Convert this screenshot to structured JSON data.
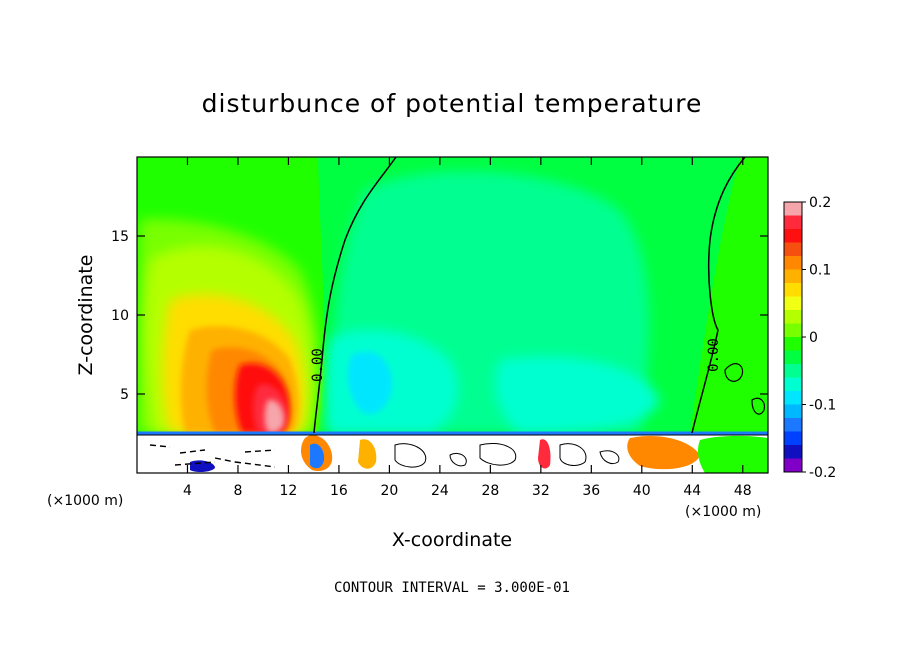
{
  "chart_data": {
    "type": "heatmap",
    "title": "disturbunce of potential temperature",
    "xlabel": "X-coordinate",
    "ylabel": "Z-coordinate",
    "x_unit": "(×1000 m)",
    "x_unit_right": "(×1000 m)",
    "xlim": [
      0,
      50
    ],
    "ylim": [
      0,
      20
    ],
    "xticks": [
      "4",
      "8",
      "12",
      "16",
      "20",
      "24",
      "28",
      "32",
      "36",
      "40",
      "44",
      "48"
    ],
    "yticks": [
      "5",
      "10",
      "15"
    ],
    "colorbar": {
      "range": [
        -0.2,
        0.2
      ],
      "tick_labels": [
        "0.2",
        "0.1",
        "0",
        "-0.1",
        "-0.2"
      ],
      "colors": [
        "#f6a6ab",
        "#ff2a3c",
        "#ff1010",
        "#f55010",
        "#ff8800",
        "#ffb100",
        "#ffdd00",
        "#f0ff14",
        "#b4ff00",
        "#78ff00",
        "#20ff00",
        "#00ff40",
        "#00ff90",
        "#00ffd0",
        "#00e6ff",
        "#00b8ff",
        "#1c78ff",
        "#0040ff",
        "#1010c0",
        "#8000c8"
      ]
    },
    "contour_labels": [
      "0.00",
      "0.00"
    ],
    "footer": "CONTOUR INTERVAL = 3.000E-01",
    "features": [
      {
        "name": "warm-anomaly",
        "x": 11,
        "z": 5,
        "peak": 0.2
      },
      {
        "name": "cool-anomaly",
        "x": 17.5,
        "z": 5,
        "peak": -0.07
      }
    ]
  }
}
